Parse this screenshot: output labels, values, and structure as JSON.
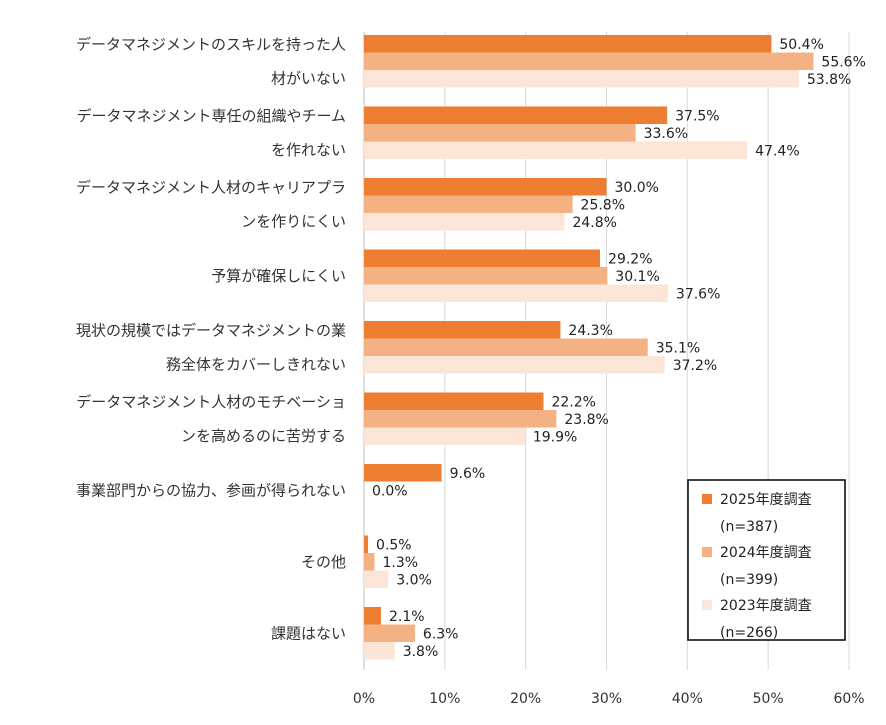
{
  "chart_data": {
    "type": "bar",
    "orientation": "horizontal",
    "categories": [
      [
        "データマネジメントのスキルを持った人",
        "材がいない"
      ],
      [
        "データマネジメント専任の組織やチーム",
        "を作れない"
      ],
      [
        "データマネジメント人材のキャリアプラ",
        "ンを作りにくい"
      ],
      [
        "予算が確保しにくい"
      ],
      [
        "現状の規模ではデータマネジメントの業",
        "務全体をカバーしきれない"
      ],
      [
        "データマネジメント人材のモチベーショ",
        "ンを高めるのに苦労する"
      ],
      [
        "事業部門からの協力、参画が得られない"
      ],
      [
        "その他"
      ],
      [
        "課題はない"
      ]
    ],
    "series": [
      {
        "name": [
          "2025年度調査",
          "(n=387)"
        ],
        "color": "#ED7D31",
        "values": [
          50.4,
          37.5,
          30.0,
          29.2,
          24.3,
          22.2,
          9.6,
          0.5,
          2.1
        ],
        "labels": [
          "50.4%",
          "37.5%",
          "30.0%",
          "29.2%",
          "24.3%",
          "22.2%",
          "9.6%",
          "0.5%",
          "2.1%"
        ]
      },
      {
        "name": [
          "2024年度調査",
          "(n=399)"
        ],
        "color": "#F4B183",
        "values": [
          55.6,
          33.6,
          25.8,
          30.1,
          35.1,
          23.8,
          0.0,
          1.3,
          6.3
        ],
        "labels": [
          "55.6%",
          "33.6%",
          "25.8%",
          "30.1%",
          "35.1%",
          "23.8%",
          "0.0%",
          "1.3%",
          "6.3%"
        ]
      },
      {
        "name": [
          "2023年度調査",
          "(n=266)"
        ],
        "color": "#FBE5D6",
        "values": [
          53.8,
          47.4,
          24.8,
          37.6,
          37.2,
          19.9,
          null,
          3.0,
          3.8
        ],
        "labels": [
          "53.8%",
          "47.4%",
          "24.8%",
          "37.6%",
          "37.2%",
          "19.9%",
          "",
          "3.0%",
          "3.8%"
        ]
      }
    ],
    "xlim": [
      0,
      60
    ],
    "xticks": [
      0,
      10,
      20,
      30,
      40,
      50,
      60
    ],
    "xtick_labels": [
      "0%",
      "10%",
      "20%",
      "30%",
      "40%",
      "50%",
      "60%"
    ],
    "grid": "vertical",
    "legend_position": "bottom-right"
  }
}
